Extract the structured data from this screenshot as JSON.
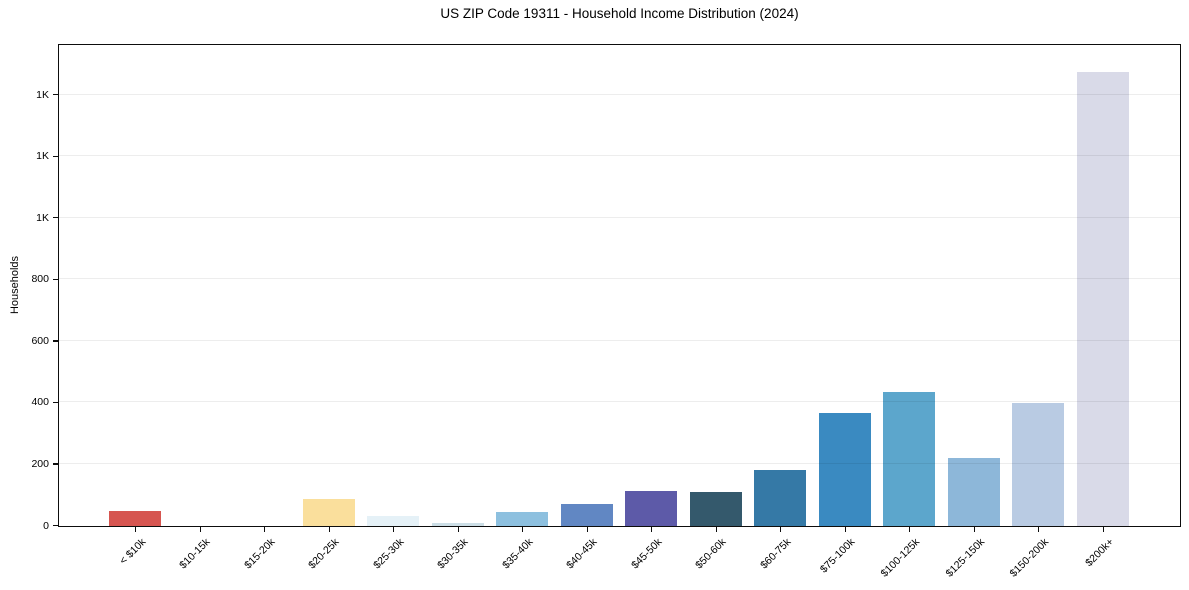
{
  "chart_data": {
    "type": "bar",
    "title": "US ZIP Code 19311 - Household Income Distribution (2024)",
    "xlabel": "",
    "ylabel": "Households",
    "categories": [
      "< $10k",
      "$10-15k",
      "$15-20k",
      "$20-25k",
      "$25-30k",
      "$30-35k",
      "$35-40k",
      "$40-45k",
      "$45-50k",
      "$50-60k",
      "$60-75k",
      "$75-100k",
      "$100-125k",
      "$125-150k",
      "$150-200k",
      "$200k+"
    ],
    "values": [
      50,
      0,
      0,
      88,
      32,
      10,
      45,
      70,
      115,
      112,
      182,
      368,
      435,
      220,
      400,
      1475
    ],
    "bar_colors": [
      "#d65550",
      "",
      "",
      "#fadf9c",
      "#e5f1f7",
      "#ccdee6",
      "#8dc0df",
      "#6187c3",
      "#5d5aa8",
      "#34596c",
      "#3579a6",
      "#3a8ac1",
      "#5ca6cc",
      "#8db7d9",
      "#b9cbe3",
      "#d9dae8"
    ],
    "ylim": [
      0,
      1560
    ],
    "yticks": [
      {
        "value": 0,
        "label": "0"
      },
      {
        "value": 200,
        "label": "200"
      },
      {
        "value": 400,
        "label": "400"
      },
      {
        "value": 600,
        "label": "600"
      },
      {
        "value": 800,
        "label": "800"
      },
      {
        "value": 1000,
        "label": "1K"
      },
      {
        "value": 1200,
        "label": "1K"
      },
      {
        "value": 1400,
        "label": "1K"
      }
    ],
    "grid": "horizontal",
    "legend": "none",
    "bar_width_ratio": 0.8
  }
}
